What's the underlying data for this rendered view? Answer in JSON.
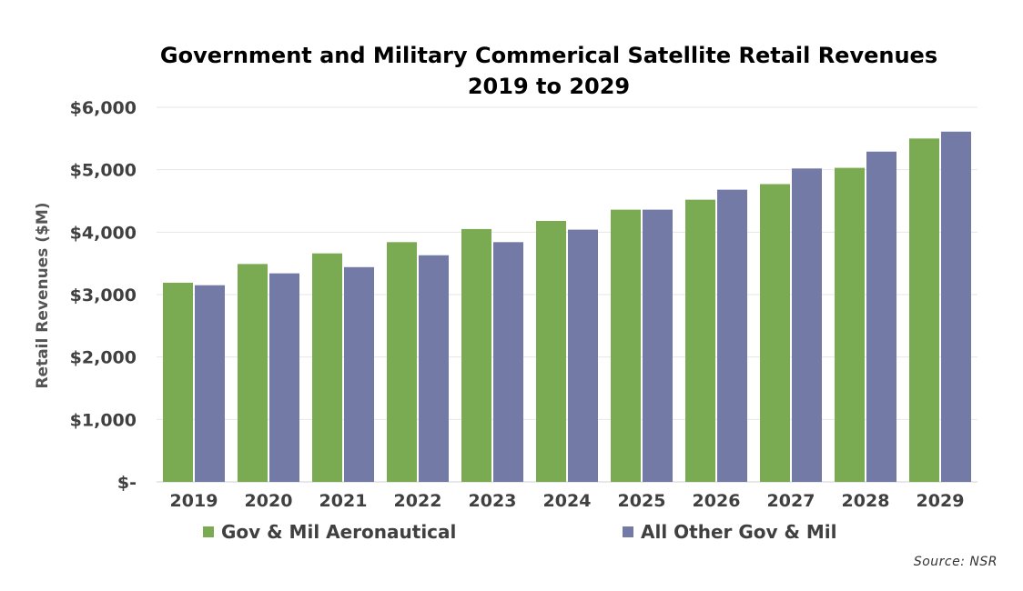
{
  "chart_data": {
    "type": "bar",
    "title_line1": "Government and Military Commerical Satellite Retail Revenues",
    "title_line2": "2019 to 2029",
    "xlabel": "",
    "ylabel": "Retail Revenues ($M)",
    "categories": [
      "2019",
      "2020",
      "2021",
      "2022",
      "2023",
      "2024",
      "2025",
      "2026",
      "2027",
      "2028",
      "2029"
    ],
    "series": [
      {
        "name": "Gov & Mil Aeronautical",
        "color": "#7aab52",
        "values": [
          3190,
          3490,
          3660,
          3840,
          4050,
          4180,
          4360,
          4520,
          4770,
          5030,
          5500
        ]
      },
      {
        "name": "All Other Gov & Mil",
        "color": "#747aa6",
        "values": [
          3150,
          3340,
          3440,
          3630,
          3840,
          4040,
          4360,
          4680,
          5020,
          5290,
          5610
        ]
      }
    ],
    "ylim": [
      0,
      6000
    ],
    "yticks": [
      0,
      1000,
      2000,
      3000,
      4000,
      5000,
      6000
    ],
    "ytick_labels": [
      "$-",
      "$1,000",
      "$2,000",
      "$3,000",
      "$4,000",
      "$5,000",
      "$6,000"
    ],
    "grid": true,
    "legend_position": "bottom",
    "source": "Source: NSR"
  }
}
